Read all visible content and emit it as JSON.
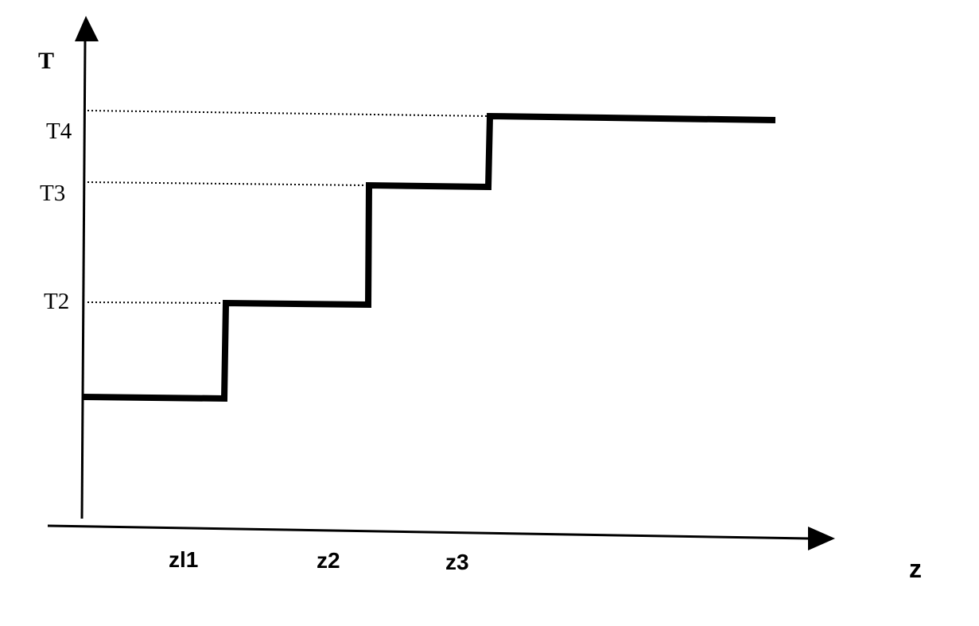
{
  "diagram": {
    "y_axis_label": "T",
    "x_axis_label": "z",
    "y_levels": [
      {
        "label": "T4"
      },
      {
        "label": "T3"
      },
      {
        "label": "T2"
      }
    ],
    "x_marks": [
      {
        "label": "zl1"
      },
      {
        "label": "z2"
      },
      {
        "label": "z3"
      }
    ],
    "colors": {
      "line": "#000000",
      "background": "#ffffff"
    }
  }
}
